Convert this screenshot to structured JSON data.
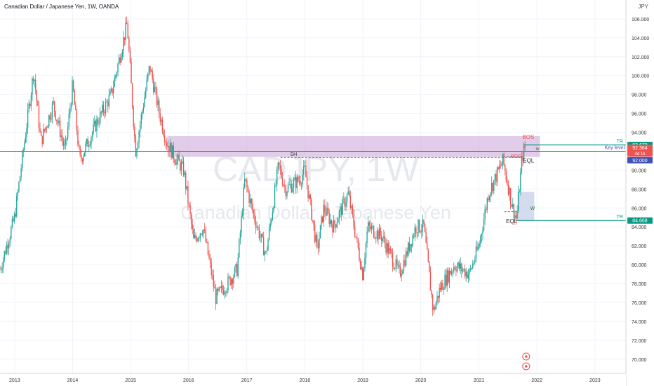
{
  "header": {
    "symbol_title": "Canadian Dollar / Japanese Yen, 1W, OANDA",
    "currency": "JPY"
  },
  "watermark": {
    "symbol": "CADJPY, 1W",
    "name": "Canadian Dollar / Japanese Yen"
  },
  "colors": {
    "up": "#26a69a",
    "down": "#ef5350",
    "zone": "#c39bd3",
    "tr_line": "#089981",
    "key_level": "#3f51b5",
    "box": "#9fb0db"
  },
  "annotations": {
    "sh": "SH",
    "bos_top": "BOS",
    "eql_top": "EQL",
    "bos_mid": "BOS",
    "eql_low": "EQL",
    "w_small": "w",
    "w_box": "W",
    "tr_top": "TR",
    "tr_low": "TR",
    "key_level": "Key level"
  },
  "price_labels": {
    "tr_top": "92.670",
    "current": "92.364",
    "countdown": "4d 1h",
    "key": "92.000",
    "tr_low": "84.668"
  },
  "chart_data": {
    "type": "candlestick",
    "title": "Canadian Dollar / Japanese Yen, 1W, OANDA",
    "ylim": [
      68.5,
      108
    ],
    "y_ticks": [
      70,
      72,
      74,
      76,
      78,
      80,
      82,
      84,
      86,
      88,
      90,
      92,
      94,
      96,
      98,
      100,
      102,
      104,
      106
    ],
    "x_ticks": [
      "2013",
      "2014",
      "2015",
      "2016",
      "2017",
      "2018",
      "2019",
      "2020",
      "2021",
      "2022",
      "2023"
    ],
    "path": [
      [
        "2012-10-01",
        79.5
      ],
      [
        "2013-01-01",
        85.0
      ],
      [
        "2013-05-01",
        100.5
      ],
      [
        "2013-06-15",
        93.0
      ],
      [
        "2013-09-01",
        97.0
      ],
      [
        "2013-11-15",
        92.0
      ],
      [
        "2014-01-01",
        99.0
      ],
      [
        "2014-02-15",
        91.0
      ],
      [
        "2014-06-01",
        95.0
      ],
      [
        "2014-09-01",
        98.0
      ],
      [
        "2014-12-10",
        105.5
      ],
      [
        "2015-02-01",
        92.0
      ],
      [
        "2015-05-01",
        101.0
      ],
      [
        "2015-07-01",
        96.0
      ],
      [
        "2015-08-15",
        93.0
      ],
      [
        "2015-10-01",
        91.5
      ],
      [
        "2015-12-01",
        90.0
      ],
      [
        "2016-02-01",
        82.5
      ],
      [
        "2016-04-01",
        84.0
      ],
      [
        "2016-06-20",
        76.5
      ],
      [
        "2016-09-01",
        78.0
      ],
      [
        "2016-11-01",
        79.5
      ],
      [
        "2016-12-20",
        89.0
      ],
      [
        "2017-02-01",
        86.0
      ],
      [
        "2017-05-01",
        81.0
      ],
      [
        "2017-07-20",
        90.5
      ],
      [
        "2017-09-01",
        88.0
      ],
      [
        "2017-12-01",
        89.0
      ],
      [
        "2018-01-01",
        90.0
      ],
      [
        "2018-03-20",
        81.5
      ],
      [
        "2018-05-01",
        86.0
      ],
      [
        "2018-07-01",
        84.0
      ],
      [
        "2018-10-01",
        87.5
      ],
      [
        "2018-12-31",
        79.0
      ],
      [
        "2019-02-01",
        84.0
      ],
      [
        "2019-05-01",
        83.0
      ],
      [
        "2019-08-20",
        79.0
      ],
      [
        "2019-12-01",
        84.0
      ],
      [
        "2020-01-20",
        84.0
      ],
      [
        "2020-03-20",
        75.0
      ],
      [
        "2020-05-01",
        77.5
      ],
      [
        "2020-08-01",
        80.0
      ],
      [
        "2020-11-01",
        79.0
      ],
      [
        "2021-01-01",
        82.0
      ],
      [
        "2021-03-01",
        87.5
      ],
      [
        "2021-06-01",
        91.0
      ],
      [
        "2021-08-01",
        86.0
      ],
      [
        "2021-08-25",
        84.8
      ],
      [
        "2021-10-01",
        91.5
      ],
      [
        "2021-10-20",
        92.4
      ]
    ],
    "levels": {
      "zone_top": 93.6,
      "zone_bottom": 91.4,
      "tr_top": 92.67,
      "key_level": 92.0,
      "tr_low": 84.668,
      "eql_high": 91.4,
      "eql_low": 85.6,
      "current": 92.364
    },
    "x_domain": [
      "2012-10-01",
      "2023-07-15"
    ]
  }
}
